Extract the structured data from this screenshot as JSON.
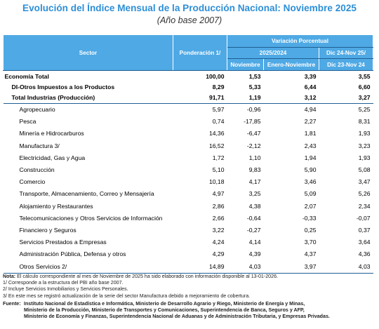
{
  "title": "Evolución del Índice Mensual de la Producción Nacional: Noviembre 2025",
  "subtitle": "(Año base 2007)",
  "table": {
    "headers": {
      "sector": "Sector",
      "ponderacion": "Ponderación 1/",
      "variacion": "Variación Porcentual",
      "period_group": "2025/2024",
      "noviembre": "Noviembre",
      "enero_noviembre": "Enero-Noviembre",
      "dic_a": "Dic 24-Nov 25/",
      "dic_b": "Dic 23-Nov 24"
    },
    "rows": [
      {
        "sector": "Economía Total",
        "ponderacion": "100,00",
        "noviembre": "1,53",
        "enero_noviembre": "3,39",
        "dic": "3,55"
      },
      {
        "sector": "DI-Otros Impuestos a los Productos",
        "ponderacion": "8,29",
        "noviembre": "5,33",
        "enero_noviembre": "6,44",
        "dic": "6,60"
      },
      {
        "sector": "Total Industrias (Producción)",
        "ponderacion": "91,71",
        "noviembre": "1,19",
        "enero_noviembre": "3,12",
        "dic": "3,27"
      },
      {
        "sector": "Agropecuario",
        "ponderacion": "5,97",
        "noviembre": "-0,96",
        "enero_noviembre": "4,94",
        "dic": "5,25"
      },
      {
        "sector": "Pesca",
        "ponderacion": "0,74",
        "noviembre": "-17,85",
        "enero_noviembre": "2,27",
        "dic": "8,31"
      },
      {
        "sector": "Minería e Hidrocarburos",
        "ponderacion": "14,36",
        "noviembre": "-6,47",
        "enero_noviembre": "1,81",
        "dic": "1,93"
      },
      {
        "sector": "Manufactura 3/",
        "ponderacion": "16,52",
        "noviembre": "-2,12",
        "enero_noviembre": "2,43",
        "dic": "3,23"
      },
      {
        "sector": "Electricidad, Gas y Agua",
        "ponderacion": "1,72",
        "noviembre": "1,10",
        "enero_noviembre": "1,94",
        "dic": "1,93"
      },
      {
        "sector": "Construcción",
        "ponderacion": "5,10",
        "noviembre": "9,83",
        "enero_noviembre": "5,90",
        "dic": "5,08"
      },
      {
        "sector": "Comercio",
        "ponderacion": "10,18",
        "noviembre": "4,17",
        "enero_noviembre": "3,46",
        "dic": "3,47"
      },
      {
        "sector": "Transporte, Almacenamiento, Correo y Mensajería",
        "ponderacion": "4,97",
        "noviembre": "3,25",
        "enero_noviembre": "5,09",
        "dic": "5,26"
      },
      {
        "sector": "Alojamiento y Restaurantes",
        "ponderacion": "2,86",
        "noviembre": "4,38",
        "enero_noviembre": "2,07",
        "dic": "2,34"
      },
      {
        "sector": "Telecomunicaciones y Otros Servicios de Información",
        "ponderacion": "2,66",
        "noviembre": "-0,64",
        "enero_noviembre": "-0,33",
        "dic": "-0,07"
      },
      {
        "sector": "Financiero y Seguros",
        "ponderacion": "3,22",
        "noviembre": "-0,27",
        "enero_noviembre": "0,25",
        "dic": "0,37"
      },
      {
        "sector": "Servicios Prestados a Empresas",
        "ponderacion": "4,24",
        "noviembre": "4,14",
        "enero_noviembre": "3,70",
        "dic": "3,64"
      },
      {
        "sector": "Administración Pública, Defensa y otros",
        "ponderacion": "4,29",
        "noviembre": "4,39",
        "enero_noviembre": "4,37",
        "dic": "4,36"
      },
      {
        "sector": "Otros Servicios 2/",
        "ponderacion": "14,89",
        "noviembre": "4,03",
        "enero_noviembre": "3,97",
        "dic": "4,03"
      }
    ]
  },
  "notes": {
    "nota_label": "Nota:",
    "nota_text": "El cálculo correspondiente al mes de Noviembre de 2025 ha sido elaborado con información disponible al 13-01-2026.",
    "n1": "1/ Corresponde a la estructura del PBI año base 2007.",
    "n2": "2/ Incluye Servicios Inmobiliarios y Servicios Personales.",
    "n3": "3/ En este mes se registró actualización de la serie del sector Manufactura debido a mejoramiento de cobertura."
  },
  "fuente": {
    "label": "Fuente:",
    "line1": "Instituto Nacional de Estadística e Informática, Ministerio de Desarrollo Agrario y Riego, Ministerio de Energía y Minas,",
    "line2": "Ministerio de la Producción, Ministerio de Transportes y Comunicaciones, Superintendencia de Banca, Seguros y AFP,",
    "line3": "Ministerio de Economía y Finanzas, Superintendencia Nacional de Aduanas y de Administración Tributaria, y Empresas Privadas."
  }
}
